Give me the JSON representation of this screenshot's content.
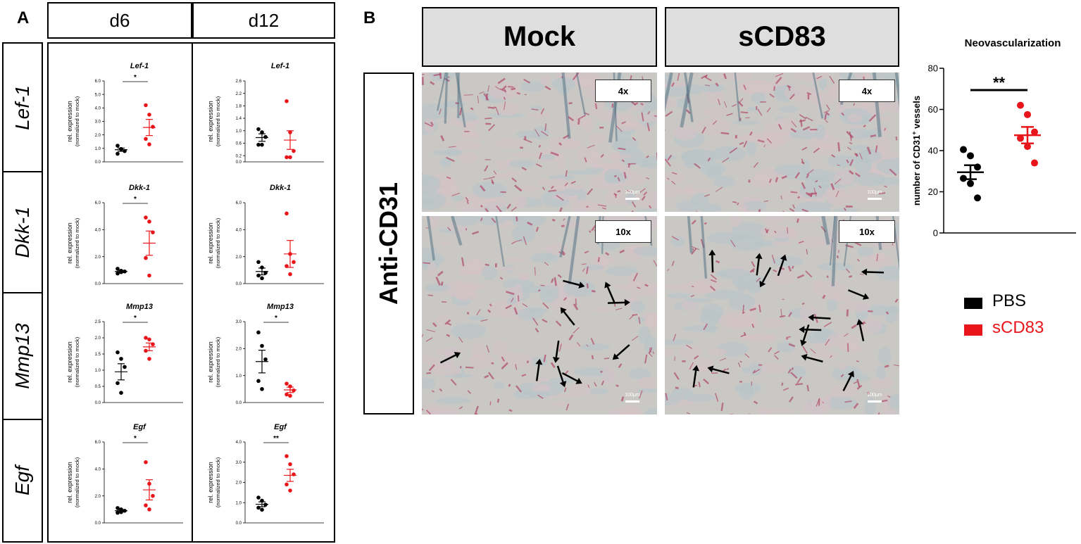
{
  "panel_a": {
    "letter": "A",
    "col_headers": [
      "d6",
      "d12"
    ],
    "row_labels": [
      "Lef-1",
      "Dkk-1",
      "Mmp13",
      "Egf"
    ]
  },
  "panel_b": {
    "letter": "B",
    "col_headers": [
      "Mock",
      "sCD83"
    ],
    "row_label": "Anti-CD31",
    "mag_labels": [
      "4x",
      "4x",
      "10x",
      "10x"
    ],
    "scale_bar_label": "100µm"
  },
  "legend": {
    "items": [
      {
        "label": "PBS",
        "color": "#000000"
      },
      {
        "label": "sCD83",
        "color": "#e8161b"
      }
    ]
  },
  "colors": {
    "pbs": "#000000",
    "scd83": "#e8161b",
    "header_gray": "#dedede"
  },
  "chart_data": [
    {
      "id": "d6-lef1",
      "type": "scatter",
      "title": "Lef-1",
      "ylabel": "rel. expression",
      "ylabel2": "(normalized to mock)",
      "yticks": [
        "0.0",
        "1.0",
        "2.0",
        "3.0",
        "4.0",
        "5.0",
        "6.0"
      ],
      "ylim": [
        0,
        6
      ],
      "significance": "*",
      "series": [
        {
          "name": "PBS",
          "points": [
            1.2,
            0.95,
            0.8,
            0.6,
            0.95
          ],
          "mean": 0.9,
          "sem": 0.12
        },
        {
          "name": "sCD83",
          "points": [
            4.2,
            3.5,
            2.6,
            1.7,
            1.3
          ],
          "mean": 2.55,
          "sem": 0.6
        }
      ]
    },
    {
      "id": "d12-lef1",
      "type": "scatter",
      "title": "Lef-1",
      "ylabel": "rel. expression",
      "ylabel2": "(normalized to mock)",
      "yticks": [
        "0.0",
        "0.2",
        "0.6",
        "1.0",
        "1.4",
        "1.8",
        "2.2",
        "2.6"
      ],
      "ylim": [
        0,
        2.6
      ],
      "significance": "",
      "series": [
        {
          "name": "PBS",
          "points": [
            1.05,
            0.95,
            0.8,
            0.55,
            0.55
          ],
          "mean": 0.78,
          "sem": 0.12
        },
        {
          "name": "sCD83",
          "points": [
            1.95,
            0.95,
            0.35,
            0.15,
            0.15
          ],
          "mean": 0.7,
          "sem": 0.3
        }
      ]
    },
    {
      "id": "d6-dkk1",
      "type": "scatter",
      "title": "Dkk-1",
      "ylabel": "rel. expression",
      "ylabel2": "(normalized to mock)",
      "yticks": [
        "0.0",
        "2.0",
        "4.0",
        "6.0"
      ],
      "ylim": [
        0,
        6
      ],
      "significance": "*",
      "series": [
        {
          "name": "PBS",
          "points": [
            1.1,
            0.95,
            0.9,
            0.75,
            0.85
          ],
          "mean": 0.9,
          "sem": 0.08
        },
        {
          "name": "sCD83",
          "points": [
            4.9,
            4.6,
            3.8,
            1.9,
            0.6
          ],
          "mean": 3.0,
          "sem": 0.9
        }
      ]
    },
    {
      "id": "d12-dkk1",
      "type": "scatter",
      "title": "Dkk-1",
      "ylabel": "rel. expression",
      "ylabel2": "(normalized to mock)",
      "yticks": [
        "0.0",
        "2.0",
        "4.0",
        "6.0"
      ],
      "ylim": [
        0,
        6
      ],
      "significance": "",
      "series": [
        {
          "name": "PBS",
          "points": [
            1.6,
            1.2,
            0.8,
            0.6,
            0.4
          ],
          "mean": 0.9,
          "sem": 0.25
        },
        {
          "name": "sCD83",
          "points": [
            5.2,
            2.2,
            1.6,
            1.3,
            0.7
          ],
          "mean": 2.2,
          "sem": 1.0
        }
      ]
    },
    {
      "id": "d6-mmp13",
      "type": "scatter",
      "title": "Mmp13",
      "ylabel": "rel. expression",
      "ylabel2": "(normalized to mock)",
      "yticks": [
        "0.0",
        "0.5",
        "1.0",
        "1.5",
        "2.0",
        "2.5"
      ],
      "ylim": [
        0,
        2.5
      ],
      "significance": "*",
      "series": [
        {
          "name": "PBS",
          "points": [
            1.55,
            1.35,
            1.1,
            0.6,
            0.3
          ],
          "mean": 0.95,
          "sem": 0.25
        },
        {
          "name": "sCD83",
          "points": [
            2.0,
            1.95,
            1.8,
            1.6,
            1.35
          ],
          "mean": 1.72,
          "sem": 0.12
        }
      ]
    },
    {
      "id": "d12-mmp13",
      "type": "scatter",
      "title": "Mmp13",
      "ylabel": "rel. expression",
      "ylabel2": "(normalized to mock)",
      "yticks": [
        "0.0",
        "1.0",
        "2.0",
        "3.0"
      ],
      "ylim": [
        0,
        3
      ],
      "significance": "*",
      "series": [
        {
          "name": "PBS",
          "points": [
            2.6,
            2.1,
            1.6,
            0.8,
            0.5
          ],
          "mean": 1.52,
          "sem": 0.42
        },
        {
          "name": "sCD83",
          "points": [
            0.7,
            0.6,
            0.45,
            0.3,
            0.25
          ],
          "mean": 0.47,
          "sem": 0.1
        }
      ]
    },
    {
      "id": "d6-egf",
      "type": "scatter",
      "title": "Egf",
      "ylabel": "rel. expression",
      "ylabel2": "(normalized to mock)",
      "yticks": [
        "0.0",
        "2.0",
        "4.0",
        "6.0"
      ],
      "ylim": [
        0,
        6
      ],
      "significance": "*",
      "series": [
        {
          "name": "PBS",
          "points": [
            1.1,
            1.0,
            0.9,
            0.75,
            0.8
          ],
          "mean": 0.9,
          "sem": 0.08
        },
        {
          "name": "sCD83",
          "points": [
            4.5,
            2.9,
            2.0,
            1.3,
            1.0
          ],
          "mean": 2.45,
          "sem": 0.75
        }
      ]
    },
    {
      "id": "d12-egf",
      "type": "scatter",
      "title": "Egf",
      "ylabel": "rel. expression",
      "ylabel2": "(normalized to mock)",
      "yticks": [
        "0.0",
        "1.0",
        "2.0",
        "3.0",
        "4.0"
      ],
      "ylim": [
        0,
        4
      ],
      "significance": "**",
      "series": [
        {
          "name": "PBS",
          "points": [
            1.25,
            1.1,
            0.9,
            0.75,
            0.65
          ],
          "mean": 0.92,
          "sem": 0.12
        },
        {
          "name": "sCD83",
          "points": [
            3.3,
            2.9,
            2.4,
            1.9,
            1.6
          ],
          "mean": 2.35,
          "sem": 0.3
        }
      ]
    },
    {
      "id": "neovascularization",
      "type": "scatter",
      "title": "Neovascularization",
      "ylabel": "number of CD31",
      "ylabel_sup": "+",
      "ylabel_suffix": " vessels",
      "yticks": [
        "0",
        "20",
        "40",
        "60",
        "80"
      ],
      "ylim": [
        0,
        80
      ],
      "significance": "**",
      "series": [
        {
          "name": "PBS",
          "points": [
            40.5,
            37.5,
            32,
            26.5,
            24,
            17
          ],
          "mean": 29.5,
          "sem": 3.4
        },
        {
          "name": "sCD83",
          "points": [
            62,
            57.5,
            49,
            46,
            42,
            34
          ],
          "mean": 47.5,
          "sem": 4
        }
      ]
    }
  ]
}
